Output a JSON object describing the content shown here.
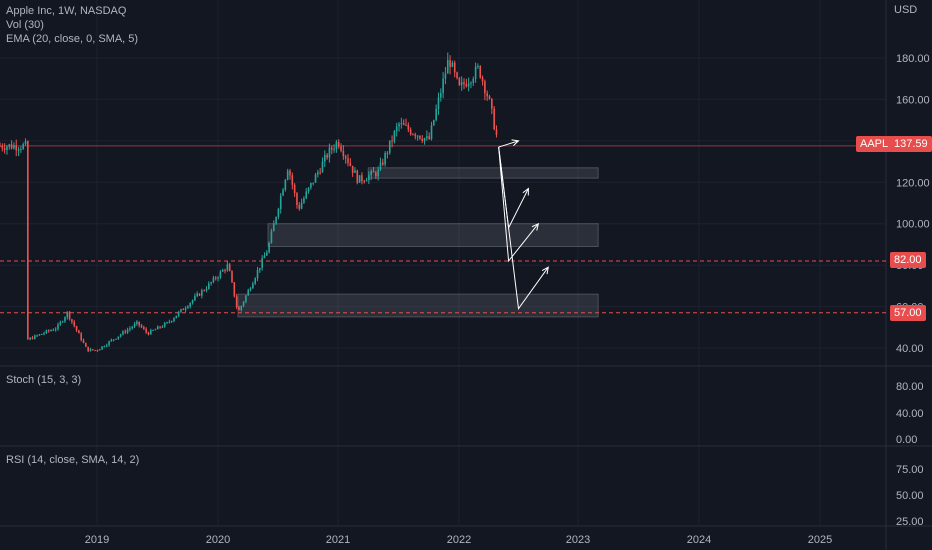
{
  "header": {
    "title": "Apple Inc, 1W, NASDAQ",
    "indicator_vol": "Vol (30)",
    "indicator_ema": "EMA (20, close, 0, SMA, 5)",
    "currency": "USD"
  },
  "price_tags": {
    "symbol": "AAPL",
    "last_price": "137.59",
    "level_1": "82.00",
    "level_2": "57.00"
  },
  "panes": {
    "stoch_label": "Stoch (15, 3, 3)",
    "rsi_label": "RSI (14, close, SMA, 14, 2)"
  },
  "colors": {
    "background": "#131722",
    "up": "#26a69a",
    "down": "#ef5350",
    "level_line": "#e84d4d",
    "grid": "#1e222d",
    "zone": "#d1d4dc"
  },
  "chart_data": {
    "type": "candlestick",
    "title": "Apple Inc, 1W, NASDAQ",
    "x_ticks": [
      "2019",
      "2020",
      "2021",
      "2022",
      "2023",
      "2024",
      "2025"
    ],
    "y_ticks": [
      40,
      60,
      80,
      100,
      120,
      140,
      160,
      180
    ],
    "y_tick_labels": [
      "40.00",
      "60.00",
      "80.00",
      "100.00",
      "120.00",
      "140.00",
      "160.00",
      "180.00"
    ],
    "stoch_ticks": [
      "80.00",
      "40.00",
      "0.00"
    ],
    "rsi_ticks": [
      "75.00",
      "50.00",
      "25.00"
    ],
    "horizontal_levels": [
      82.0,
      57.0
    ],
    "last_price": 137.59,
    "price_path": [
      [
        "2018-06",
        44
      ],
      [
        "2018-09",
        50
      ],
      [
        "2018-10",
        57
      ],
      [
        "2018-12",
        39
      ],
      [
        "2019-01",
        39
      ],
      [
        "2019-05",
        52
      ],
      [
        "2019-06",
        47
      ],
      [
        "2019-08",
        52
      ],
      [
        "2019-12",
        70
      ],
      [
        "2020-02",
        80
      ],
      [
        "2020-03",
        57
      ],
      [
        "2020-06",
        88
      ],
      [
        "2020-08",
        128
      ],
      [
        "2020-09",
        107
      ],
      [
        "2020-12",
        134
      ],
      [
        "2021-01",
        140
      ],
      [
        "2021-03",
        121
      ],
      [
        "2021-05",
        125
      ],
      [
        "2021-07",
        148
      ],
      [
        "2021-09",
        143
      ],
      [
        "2021-10",
        140
      ],
      [
        "2021-12",
        180
      ],
      [
        "2022-01",
        165
      ],
      [
        "2022-03",
        175
      ],
      [
        "2022-04",
        160
      ],
      [
        "2022-05",
        137.59
      ]
    ],
    "zones": [
      {
        "from": "2021-04",
        "to": "2023-03",
        "low": 122,
        "high": 127
      },
      {
        "from": "2020-06",
        "to": "2023-03",
        "low": 89,
        "high": 100
      },
      {
        "from": "2020-03",
        "to": "2023-03",
        "low": 55,
        "high": 66
      }
    ],
    "projections": [
      {
        "points": [
          [
            "2022-05",
            137
          ],
          [
            "2022-07",
            140
          ]
        ]
      },
      {
        "points": [
          [
            "2022-05",
            137
          ],
          [
            "2022-06",
            98
          ],
          [
            "2022-08",
            117
          ]
        ]
      },
      {
        "points": [
          [
            "2022-05",
            137
          ],
          [
            "2022-06",
            82
          ],
          [
            "2022-09",
            100
          ]
        ]
      },
      {
        "points": [
          [
            "2022-05",
            137
          ],
          [
            "2022-07",
            59
          ],
          [
            "2022-10",
            79
          ]
        ]
      }
    ]
  }
}
